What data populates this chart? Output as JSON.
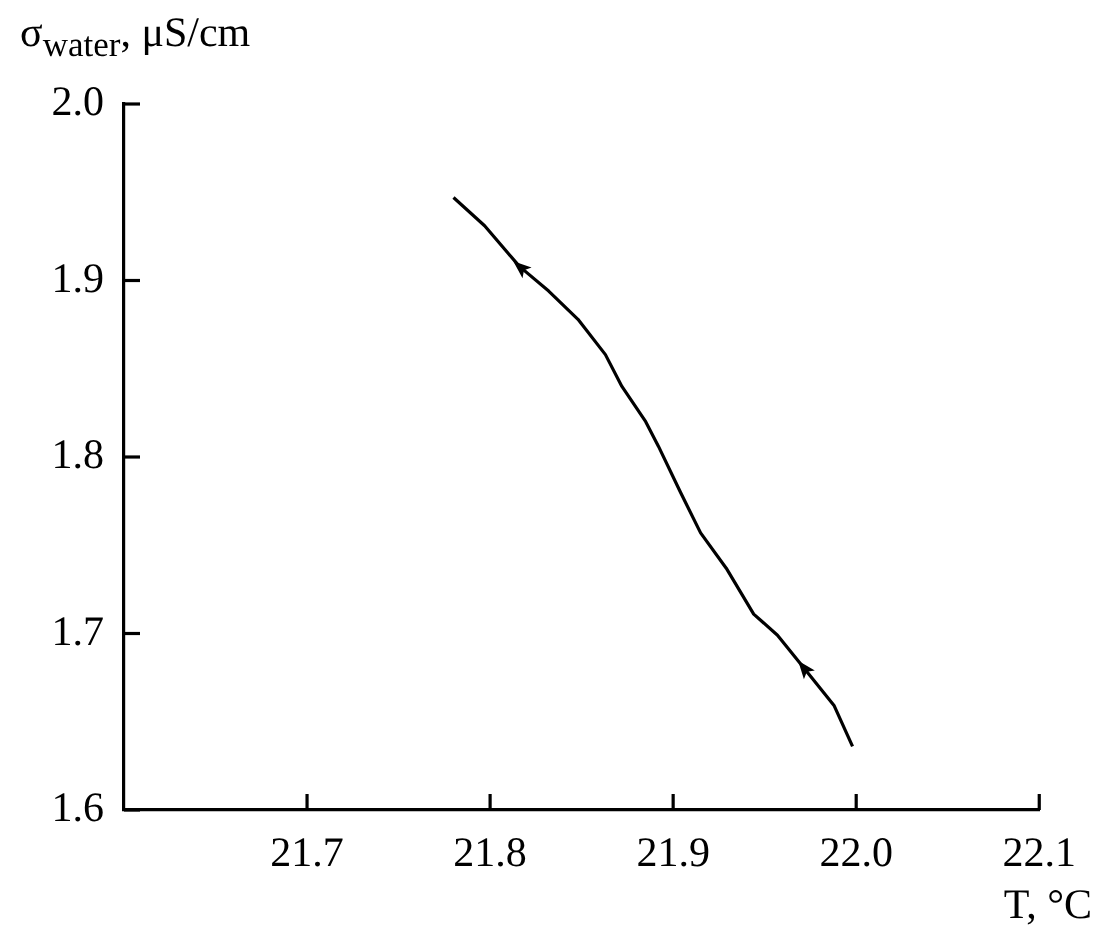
{
  "chart_data": {
    "type": "line",
    "xlabel": "T, °C",
    "ylabel": "σ$_{water}$, μS/cm",
    "series": [
      {
        "color": "#000000",
        "x": [
          21.78,
          21.797,
          21.816,
          21.832,
          21.848,
          21.863,
          21.872,
          21.885,
          21.892,
          21.904,
          21.915,
          21.929,
          21.944,
          21.957,
          21.971,
          21.988,
          21.998
        ],
        "values": [
          1.947,
          1.931,
          1.908,
          1.894,
          1.878,
          1.858,
          1.84,
          1.82,
          1.806,
          1.78,
          1.757,
          1.737,
          1.711,
          1.699,
          1.681,
          1.659,
          1.636
        ]
      }
    ],
    "xlim": [
      21.6,
      22.1
    ],
    "xticks": [
      21.7,
      21.8,
      21.9,
      {
        "value": 22,
        "label": "22.0"
      },
      22.1
    ],
    "ylim": [
      1.6,
      2.0
    ],
    "yticks": [
      1.6,
      1.7,
      1.8,
      1.9,
      {
        "value": 2,
        "label": "2.0"
      }
    ],
    "grid": false,
    "legend": false,
    "marker": "none",
    "line_style": "solid"
  }
}
